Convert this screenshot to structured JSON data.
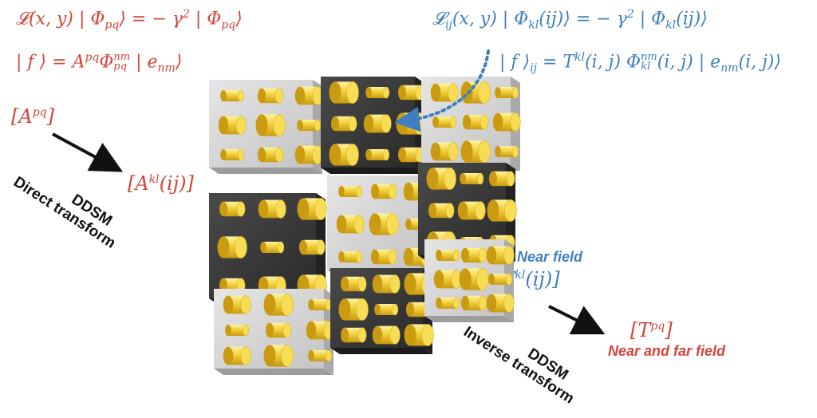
{
  "equations": {
    "global_eigen": "𝓛(x, y) | Φ_pq⟩ = − γ² | Φ_pq⟩",
    "global_expansion": "| f ⟩ = A^pq Φ^nm_pq | e_nm⟩",
    "local_eigen": "𝓛_ij(x, y) | Φ_kl(ij)⟩ = − γ² | Φ_kl(ij)⟩",
    "local_expansion": "| f ⟩_ij = T^kl(i, j) Φ^nm_kl(i, j) | e_nm(i, j)⟩"
  },
  "labels": {
    "a_pq": "[A^pq]",
    "a_kl": "[A^kl(ij)]",
    "direct_line1": "DDSM",
    "direct_line2": "Direct transform",
    "near_field": "Near field",
    "t_kl": "[T^kl(ij)]",
    "t_pq": "[T^pq]",
    "near_far_field": "Near and far field",
    "inverse_line1": "DDSM",
    "inverse_line2": "Inverse transform"
  },
  "colors": {
    "red": "#d2453a",
    "blue": "#3f7fbf",
    "pillar": "#f2cf3a",
    "light_tile": "#d6d6d6",
    "dark_tile": "#3b3b3b"
  }
}
